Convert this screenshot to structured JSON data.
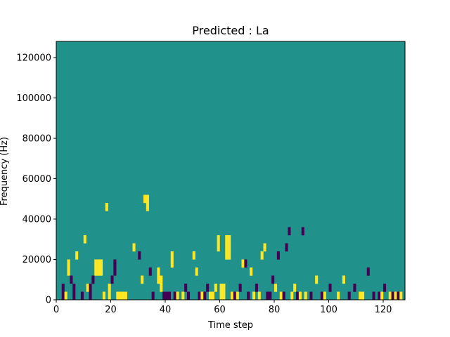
{
  "chart_data": {
    "type": "heatmap",
    "title": "Predicted : La",
    "xlabel": "Time step",
    "ylabel": "Frequency (Hz)",
    "xlim": [
      0,
      128
    ],
    "ylim": [
      0,
      128000
    ],
    "x_ticks": [
      0,
      20,
      40,
      60,
      80,
      100,
      120
    ],
    "y_ticks": [
      0,
      20000,
      40000,
      60000,
      80000,
      100000,
      120000
    ],
    "x_tick_labels": [
      "0",
      "20",
      "40",
      "60",
      "80",
      "100",
      "120"
    ],
    "y_tick_labels": [
      "0",
      "20000",
      "40000",
      "60000",
      "80000",
      "100000",
      "120000"
    ],
    "time_steps": 128,
    "frequency_bin_hz": 4000,
    "value_levels": [
      -1,
      0,
      1
    ],
    "colors": {
      "low": "#440154",
      "mid": "#21918c",
      "high": "#fde725"
    },
    "background_value": 0,
    "cells": [
      {
        "t": 2,
        "f_bins": [
          0,
          1
        ],
        "v": -1
      },
      {
        "t": 3,
        "f_bins": [
          0
        ],
        "v": 1
      },
      {
        "t": 4,
        "f_bins": [
          3,
          4
        ],
        "v": 1
      },
      {
        "t": 5,
        "f_bins": [
          2
        ],
        "v": -1
      },
      {
        "t": 6,
        "f_bins": [
          0,
          1
        ],
        "v": -1
      },
      {
        "t": 7,
        "f_bins": [
          5
        ],
        "v": 1
      },
      {
        "t": 9,
        "f_bins": [
          0
        ],
        "v": -1
      },
      {
        "t": 10,
        "f_bins": [
          7
        ],
        "v": 1
      },
      {
        "t": 11,
        "f_bins": [
          1
        ],
        "v": 1
      },
      {
        "t": 12,
        "f_bins": [
          0,
          1
        ],
        "v": -1
      },
      {
        "t": 13,
        "f_bins": [
          2
        ],
        "v": -1
      },
      {
        "t": 14,
        "f_bins": [
          3,
          4
        ],
        "v": 1
      },
      {
        "t": 15,
        "f_bins": [
          3,
          4
        ],
        "v": 1
      },
      {
        "t": 16,
        "f_bins": [
          3,
          4
        ],
        "v": 1
      },
      {
        "t": 17,
        "f_bins": [
          0
        ],
        "v": 1
      },
      {
        "t": 18,
        "f_bins": [
          11
        ],
        "v": 1
      },
      {
        "t": 19,
        "f_bins": [
          0,
          1
        ],
        "v": 1
      },
      {
        "t": 20,
        "f_bins": [
          2
        ],
        "v": -1
      },
      {
        "t": 21,
        "f_bins": [
          3,
          4
        ],
        "v": -1
      },
      {
        "t": 22,
        "f_bins": [
          0
        ],
        "v": 1
      },
      {
        "t": 23,
        "f_bins": [
          0
        ],
        "v": 1
      },
      {
        "t": 24,
        "f_bins": [
          0
        ],
        "v": 1
      },
      {
        "t": 25,
        "f_bins": [
          0
        ],
        "v": 1
      },
      {
        "t": 28,
        "f_bins": [
          6
        ],
        "v": 1
      },
      {
        "t": 30,
        "f_bins": [
          5
        ],
        "v": -1
      },
      {
        "t": 31,
        "f_bins": [
          2
        ],
        "v": 1
      },
      {
        "t": 32,
        "f_bins": [
          12
        ],
        "v": 1
      },
      {
        "t": 33,
        "f_bins": [
          11,
          12
        ],
        "v": 1
      },
      {
        "t": 34,
        "f_bins": [
          3
        ],
        "v": -1
      },
      {
        "t": 35,
        "f_bins": [
          0
        ],
        "v": -1
      },
      {
        "t": 37,
        "f_bins": [
          2,
          3
        ],
        "v": 1
      },
      {
        "t": 38,
        "f_bins": [
          1,
          2
        ],
        "v": 1
      },
      {
        "t": 39,
        "f_bins": [
          0
        ],
        "v": -1
      },
      {
        "t": 40,
        "f_bins": [
          0
        ],
        "v": -1
      },
      {
        "t": 41,
        "f_bins": [
          0
        ],
        "v": -1
      },
      {
        "t": 42,
        "f_bins": [
          4,
          5
        ],
        "v": 1
      },
      {
        "t": 43,
        "f_bins": [
          0
        ],
        "v": -1
      },
      {
        "t": 44,
        "f_bins": [
          0
        ],
        "v": 1
      },
      {
        "t": 46,
        "f_bins": [
          0
        ],
        "v": 1
      },
      {
        "t": 47,
        "f_bins": [
          1
        ],
        "v": -1
      },
      {
        "t": 48,
        "f_bins": [
          0
        ],
        "v": -1
      },
      {
        "t": 50,
        "f_bins": [
          5
        ],
        "v": 1
      },
      {
        "t": 51,
        "f_bins": [
          3
        ],
        "v": 1
      },
      {
        "t": 52,
        "f_bins": [
          0
        ],
        "v": -1
      },
      {
        "t": 53,
        "f_bins": [
          0
        ],
        "v": 1
      },
      {
        "t": 54,
        "f_bins": [
          0
        ],
        "v": -1
      },
      {
        "t": 55,
        "f_bins": [
          1
        ],
        "v": -1
      },
      {
        "t": 56,
        "f_bins": [
          0
        ],
        "v": 1
      },
      {
        "t": 57,
        "f_bins": [
          0
        ],
        "v": 1
      },
      {
        "t": 58,
        "f_bins": [
          1
        ],
        "v": 1
      },
      {
        "t": 59,
        "f_bins": [
          6,
          7
        ],
        "v": 1
      },
      {
        "t": 60,
        "f_bins": [
          0,
          1
        ],
        "v": 1
      },
      {
        "t": 61,
        "f_bins": [
          0,
          1
        ],
        "v": 1
      },
      {
        "t": 62,
        "f_bins": [
          5,
          6,
          7
        ],
        "v": 1
      },
      {
        "t": 63,
        "f_bins": [
          5,
          6,
          7
        ],
        "v": 1
      },
      {
        "t": 64,
        "f_bins": [
          0
        ],
        "v": 1
      },
      {
        "t": 65,
        "f_bins": [
          0
        ],
        "v": -1
      },
      {
        "t": 66,
        "f_bins": [
          0
        ],
        "v": 1
      },
      {
        "t": 67,
        "f_bins": [
          1
        ],
        "v": -1
      },
      {
        "t": 68,
        "f_bins": [
          4
        ],
        "v": 1
      },
      {
        "t": 69,
        "f_bins": [
          4
        ],
        "v": -1
      },
      {
        "t": 70,
        "f_bins": [
          0
        ],
        "v": -1
      },
      {
        "t": 71,
        "f_bins": [
          3
        ],
        "v": 1
      },
      {
        "t": 72,
        "f_bins": [
          0
        ],
        "v": 1
      },
      {
        "t": 73,
        "f_bins": [
          1
        ],
        "v": -1
      },
      {
        "t": 74,
        "f_bins": [
          0
        ],
        "v": 1
      },
      {
        "t": 75,
        "f_bins": [
          5
        ],
        "v": 1
      },
      {
        "t": 76,
        "f_bins": [
          6
        ],
        "v": 1
      },
      {
        "t": 77,
        "f_bins": [
          0
        ],
        "v": -1
      },
      {
        "t": 78,
        "f_bins": [
          0
        ],
        "v": -1
      },
      {
        "t": 79,
        "f_bins": [
          2
        ],
        "v": -1
      },
      {
        "t": 80,
        "f_bins": [
          1
        ],
        "v": 1
      },
      {
        "t": 81,
        "f_bins": [
          5
        ],
        "v": -1
      },
      {
        "t": 82,
        "f_bins": [
          0
        ],
        "v": 1
      },
      {
        "t": 83,
        "f_bins": [
          0
        ],
        "v": -1
      },
      {
        "t": 84,
        "f_bins": [
          6
        ],
        "v": -1
      },
      {
        "t": 85,
        "f_bins": [
          8
        ],
        "v": -1
      },
      {
        "t": 86,
        "f_bins": [
          0
        ],
        "v": 1
      },
      {
        "t": 87,
        "f_bins": [
          1
        ],
        "v": 1
      },
      {
        "t": 88,
        "f_bins": [
          0
        ],
        "v": -1
      },
      {
        "t": 89,
        "f_bins": [
          0
        ],
        "v": 1
      },
      {
        "t": 90,
        "f_bins": [
          8
        ],
        "v": -1
      },
      {
        "t": 91,
        "f_bins": [
          0
        ],
        "v": 1
      },
      {
        "t": 93,
        "f_bins": [
          0
        ],
        "v": -1
      },
      {
        "t": 95,
        "f_bins": [
          2
        ],
        "v": 1
      },
      {
        "t": 97,
        "f_bins": [
          0
        ],
        "v": -1
      },
      {
        "t": 98,
        "f_bins": [
          0
        ],
        "v": 1
      },
      {
        "t": 100,
        "f_bins": [
          1
        ],
        "v": -1
      },
      {
        "t": 103,
        "f_bins": [
          0
        ],
        "v": 1
      },
      {
        "t": 105,
        "f_bins": [
          2
        ],
        "v": 1
      },
      {
        "t": 107,
        "f_bins": [
          0
        ],
        "v": -1
      },
      {
        "t": 109,
        "f_bins": [
          1
        ],
        "v": -1
      },
      {
        "t": 111,
        "f_bins": [
          0
        ],
        "v": 1
      },
      {
        "t": 112,
        "f_bins": [
          0
        ],
        "v": 1
      },
      {
        "t": 114,
        "f_bins": [
          3
        ],
        "v": -1
      },
      {
        "t": 116,
        "f_bins": [
          0
        ],
        "v": -1
      },
      {
        "t": 118,
        "f_bins": [
          0
        ],
        "v": -1
      },
      {
        "t": 119,
        "f_bins": [
          0
        ],
        "v": 1
      },
      {
        "t": 120,
        "f_bins": [
          1
        ],
        "v": -1
      },
      {
        "t": 122,
        "f_bins": [
          0
        ],
        "v": 1
      },
      {
        "t": 123,
        "f_bins": [
          0
        ],
        "v": -1
      },
      {
        "t": 124,
        "f_bins": [
          0
        ],
        "v": 1
      },
      {
        "t": 125,
        "f_bins": [
          0
        ],
        "v": -1
      },
      {
        "t": 126,
        "f_bins": [
          0
        ],
        "v": 1
      }
    ]
  }
}
